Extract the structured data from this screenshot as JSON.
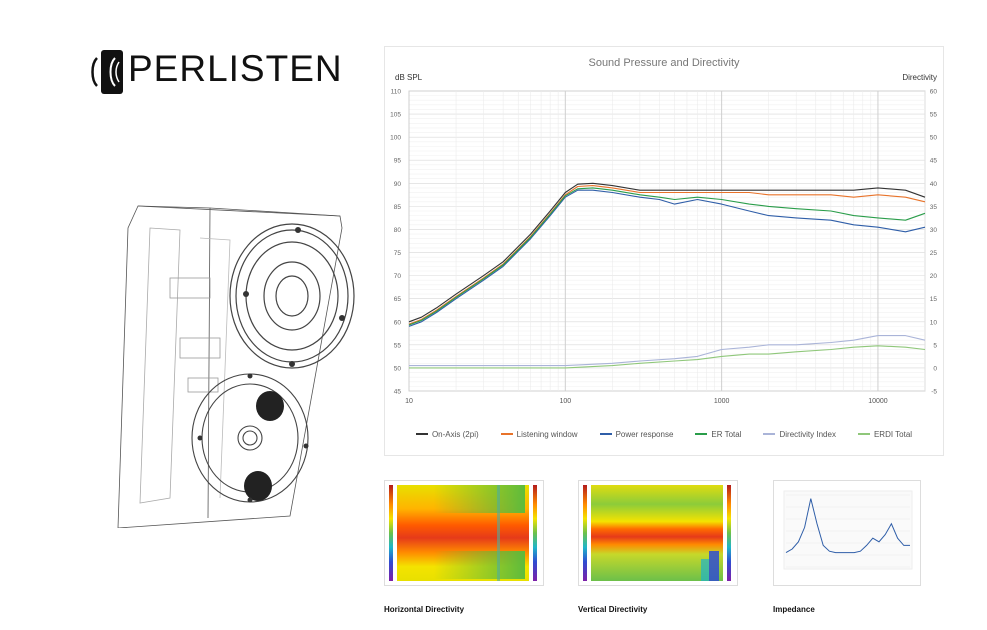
{
  "brand": {
    "name": "PERLISTEN"
  },
  "chart_data": [
    {
      "type": "line",
      "title": "Sound Pressure and Directivity",
      "ylabel": "dB SPL",
      "y2label": "Directivity",
      "x_scale": "log",
      "xlim": [
        10,
        20000
      ],
      "ylim": [
        45,
        110
      ],
      "y2lim": [
        -5,
        60
      ],
      "x_ticks": [
        10,
        100,
        1000,
        10000
      ],
      "x_tick_labels": [
        "10",
        "100",
        "1000",
        "10000"
      ],
      "y_ticks": [
        45,
        50,
        55,
        60,
        65,
        70,
        75,
        80,
        85,
        90,
        95,
        100,
        105,
        110
      ],
      "y2_ticks": [
        -5,
        0,
        5,
        10,
        15,
        20,
        25,
        30,
        35,
        40,
        45,
        50,
        55,
        60
      ],
      "grid": true,
      "legend_position": "bottom",
      "series": [
        {
          "name": "On-Axis (2pi)",
          "color": "#333333",
          "axis": "left",
          "x": [
            10,
            12,
            15,
            20,
            30,
            40,
            60,
            80,
            100,
            120,
            150,
            200,
            300,
            400,
            500,
            700,
            1000,
            1500,
            2000,
            3000,
            5000,
            7000,
            10000,
            15000,
            20000
          ],
          "y": [
            60,
            61,
            63,
            66,
            70,
            73,
            79,
            84,
            88,
            89.8,
            90,
            89.5,
            88.5,
            88.5,
            88.5,
            88.5,
            88.5,
            88.5,
            88.5,
            88.5,
            88.5,
            88.5,
            89,
            88.5,
            87
          ]
        },
        {
          "name": "Listening window",
          "color": "#e8732a",
          "axis": "left",
          "x": [
            10,
            12,
            15,
            20,
            30,
            40,
            60,
            80,
            100,
            120,
            150,
            200,
            300,
            400,
            500,
            700,
            1000,
            1500,
            2000,
            3000,
            5000,
            7000,
            10000,
            15000,
            20000
          ],
          "y": [
            59.5,
            60.5,
            62.5,
            65.5,
            69.5,
            72.5,
            78.5,
            83.5,
            87.5,
            89.3,
            89.5,
            89,
            88,
            88,
            88,
            88,
            88,
            88,
            87.5,
            87.5,
            87.5,
            87,
            87.5,
            87,
            86
          ]
        },
        {
          "name": "Power response",
          "color": "#2f5ea8",
          "axis": "left",
          "x": [
            10,
            12,
            15,
            20,
            30,
            40,
            60,
            80,
            100,
            120,
            150,
            200,
            300,
            400,
            500,
            700,
            1000,
            1500,
            2000,
            3000,
            5000,
            7000,
            10000,
            15000,
            20000
          ],
          "y": [
            59,
            60,
            62,
            65,
            69,
            72,
            78,
            83,
            87,
            88.5,
            88.5,
            88,
            87,
            86.5,
            85.5,
            86.5,
            85.5,
            84,
            83,
            82.5,
            82,
            81,
            80.5,
            79.5,
            80.5
          ]
        },
        {
          "name": "ER Total",
          "color": "#2a9d4a",
          "axis": "left",
          "x": [
            10,
            12,
            15,
            20,
            30,
            40,
            60,
            80,
            100,
            120,
            150,
            200,
            300,
            400,
            500,
            700,
            1000,
            1500,
            2000,
            3000,
            5000,
            7000,
            10000,
            15000,
            20000
          ],
          "y": [
            59.3,
            60.3,
            62.3,
            65.3,
            69.3,
            72.3,
            78.3,
            83.3,
            87.3,
            88.8,
            89,
            88.5,
            87.5,
            87,
            86.5,
            87,
            86.5,
            85.5,
            85,
            84.5,
            84,
            83,
            82.5,
            82,
            83.5
          ]
        },
        {
          "name": "Directivity Index",
          "color": "#aab4d8",
          "axis": "right",
          "x": [
            10,
            20,
            50,
            100,
            200,
            300,
            500,
            700,
            1000,
            1500,
            2000,
            3000,
            5000,
            7000,
            10000,
            15000,
            20000
          ],
          "y": [
            0.5,
            0.5,
            0.5,
            0.5,
            1,
            1.5,
            2,
            2.5,
            4,
            4.5,
            5,
            5,
            5.5,
            6,
            7,
            7,
            6
          ]
        },
        {
          "name": "ERDI Total",
          "color": "#8fc77a",
          "axis": "right",
          "x": [
            10,
            20,
            50,
            100,
            200,
            300,
            500,
            700,
            1000,
            1500,
            2000,
            3000,
            5000,
            7000,
            10000,
            15000,
            20000
          ],
          "y": [
            0,
            0,
            0,
            0,
            0.5,
            1,
            1.5,
            1.8,
            2.5,
            3,
            3,
            3.5,
            4,
            4.5,
            4.8,
            4.5,
            4
          ]
        }
      ]
    },
    {
      "type": "heatmap",
      "name": "Horizontal Directivity"
    },
    {
      "type": "heatmap",
      "name": "Vertical Directivity"
    },
    {
      "type": "line",
      "name": "Impedance",
      "series": [
        {
          "color": "#2f5ea8",
          "x": [
            0,
            0.05,
            0.1,
            0.15,
            0.2,
            0.25,
            0.3,
            0.35,
            0.4,
            0.45,
            0.5,
            0.55,
            0.6,
            0.65,
            0.7,
            0.75,
            0.8,
            0.85,
            0.9,
            0.95,
            1
          ],
          "y": [
            0.2,
            0.25,
            0.35,
            0.55,
            0.95,
            0.6,
            0.3,
            0.22,
            0.2,
            0.2,
            0.2,
            0.2,
            0.22,
            0.3,
            0.4,
            0.35,
            0.45,
            0.6,
            0.4,
            0.3,
            0.3
          ]
        }
      ]
    }
  ],
  "captions": {
    "horizontal": "Horizontal Directivity",
    "vertical": "Vertical Directivity",
    "impedance": "Impedance"
  }
}
